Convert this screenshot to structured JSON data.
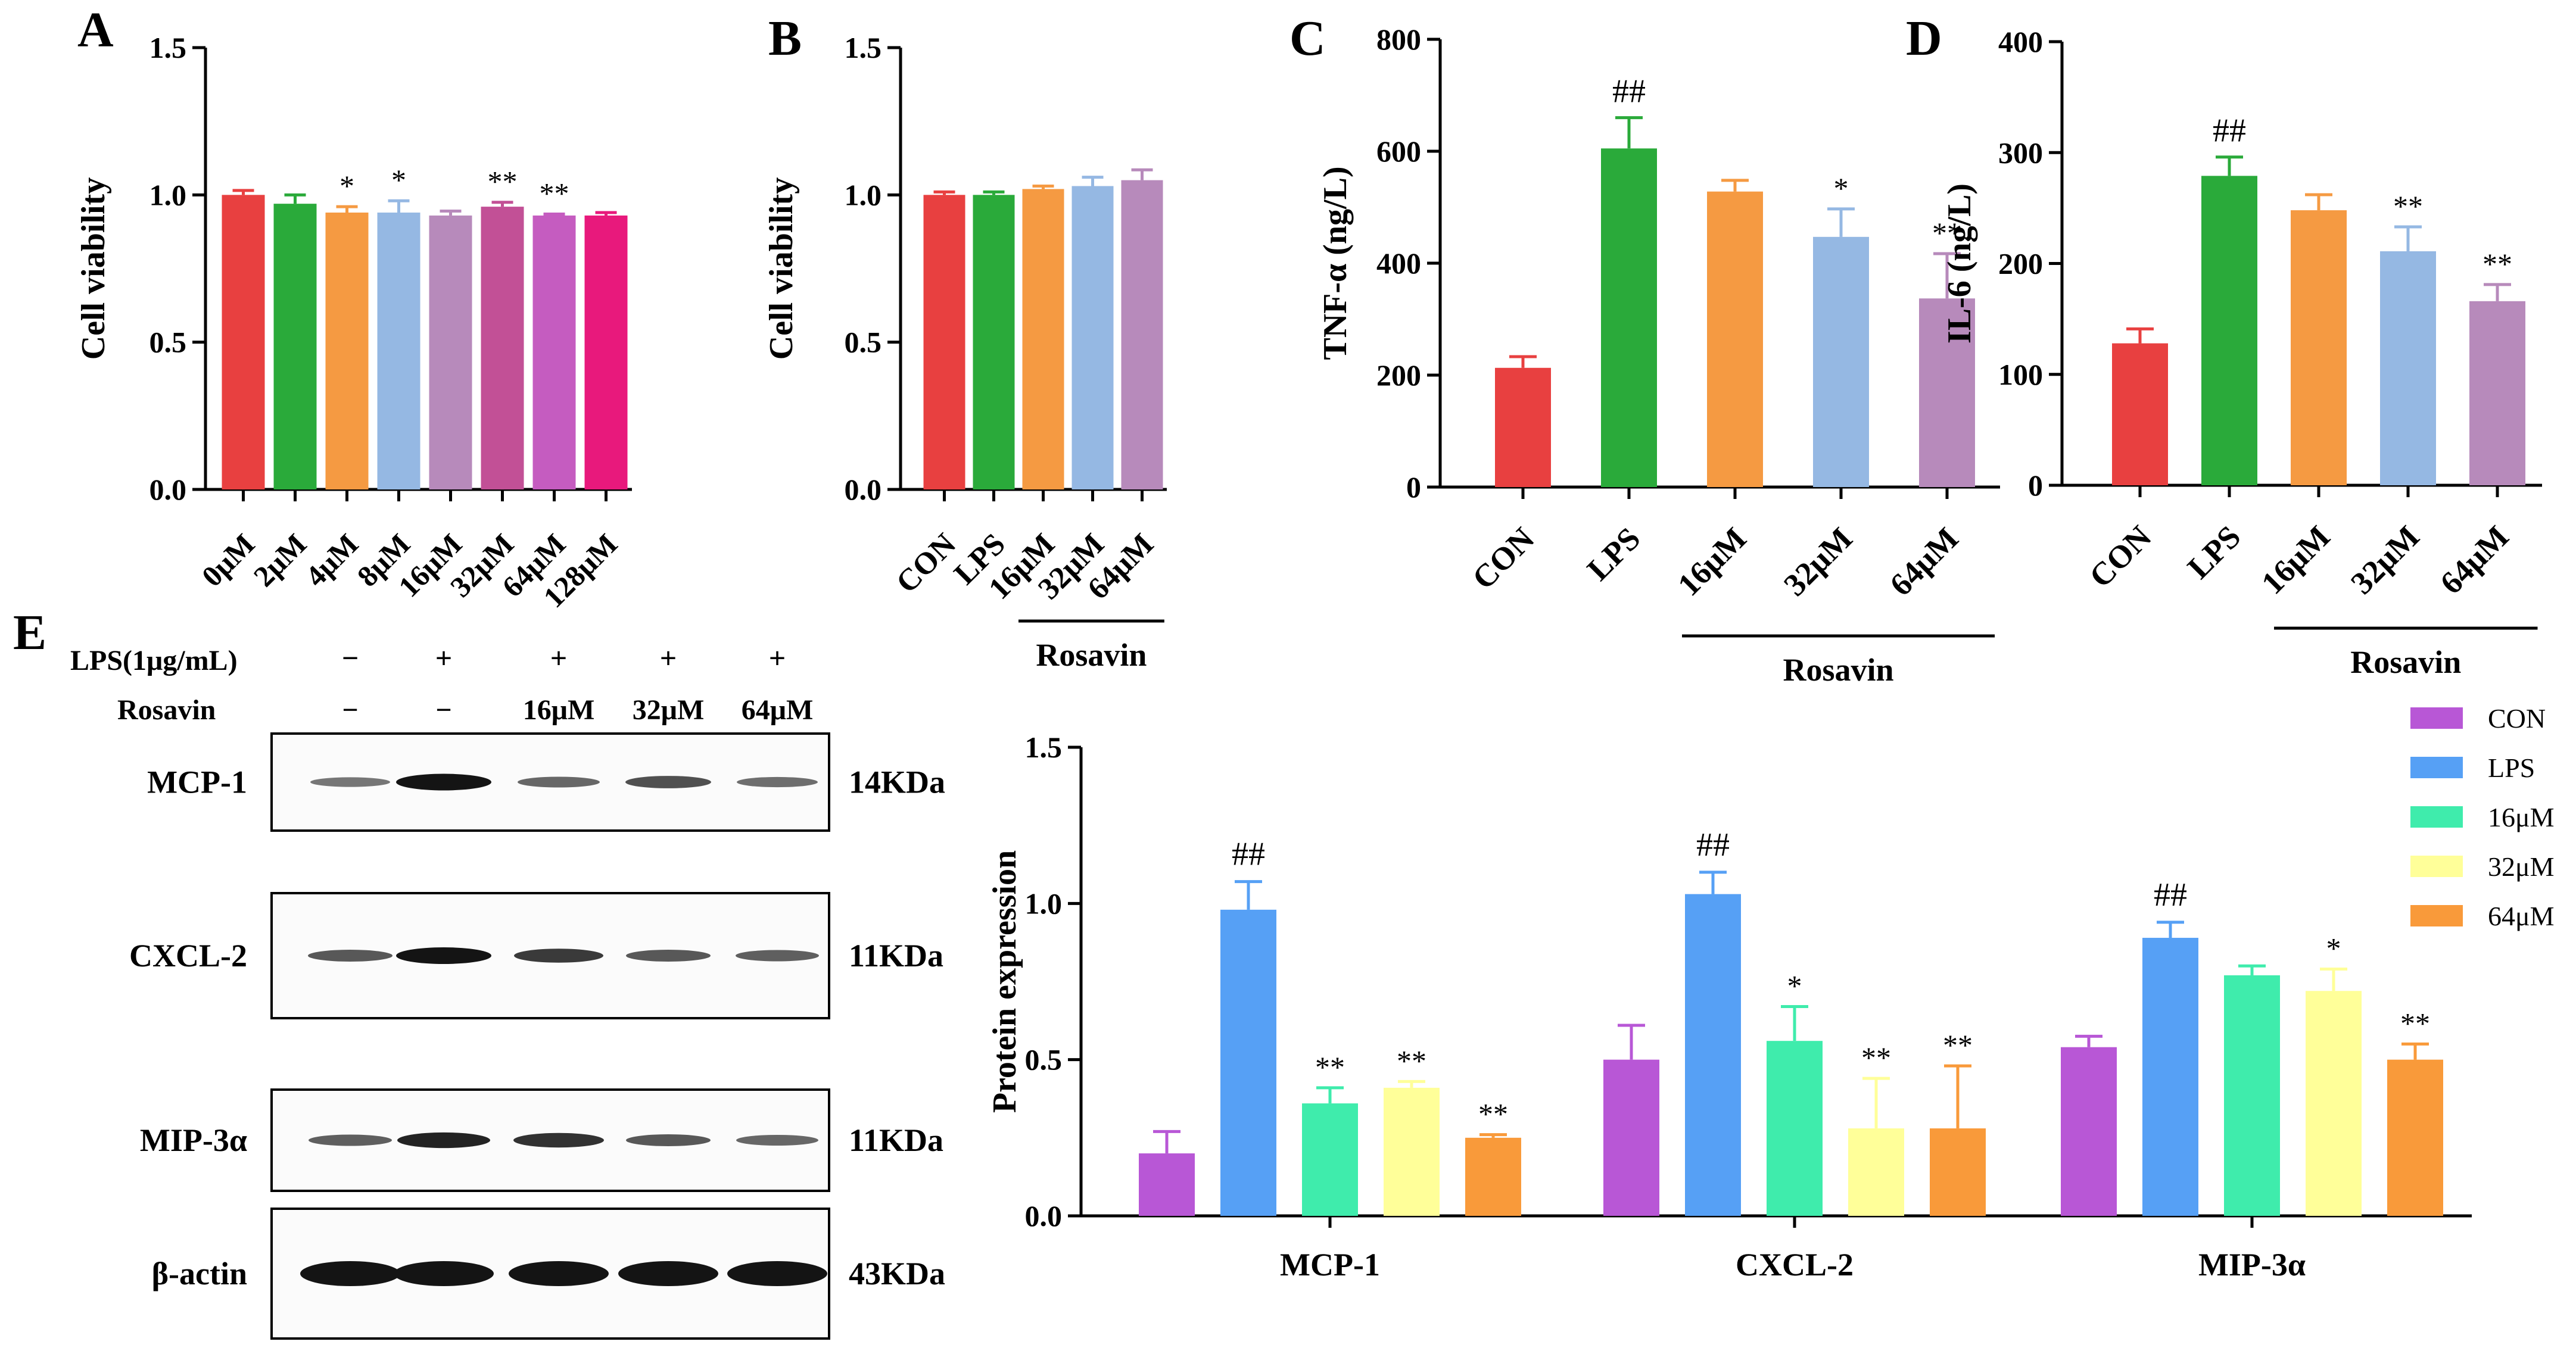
{
  "colors": {
    "red": "#e84040",
    "green": "#2aaa3a",
    "orange": "#f59a42",
    "lightblue": "#95b8e3",
    "mauve": "#b78abb",
    "pinkpurple": "#c25096",
    "magenta": "#c55cc0",
    "pink": "#e8197c",
    "purple": "#b857d6",
    "blue": "#56a0f5",
    "mint": "#3fecac",
    "yellow": "#ffff99",
    "orange2": "#f99a3a"
  },
  "chart_data": [
    {
      "panel": "A",
      "type": "bar",
      "ylabel": "Cell viability",
      "ylim": [
        0,
        1.5
      ],
      "yticks": [
        "0.0",
        "0.5",
        "1.0",
        "1.5"
      ],
      "categories": [
        "0μM",
        "2μM",
        "4μM",
        "8μM",
        "16μM",
        "32μM",
        "64μM",
        "128μM"
      ],
      "values": [
        1.0,
        0.97,
        0.94,
        0.94,
        0.93,
        0.96,
        0.93,
        0.93
      ],
      "errors": [
        0.015,
        0.03,
        0.02,
        0.04,
        0.015,
        0.015,
        0.005,
        0.01
      ],
      "annotations": [
        "",
        "",
        "*",
        "*",
        "",
        "**",
        "**",
        ""
      ],
      "colors": [
        "red",
        "green",
        "orange",
        "lightblue",
        "mauve",
        "pinkpurple",
        "magenta",
        "pink"
      ]
    },
    {
      "panel": "B",
      "type": "bar",
      "ylabel": "Cell viability",
      "ylim": [
        0,
        1.5
      ],
      "yticks": [
        "0.0",
        "0.5",
        "1.0",
        "1.5"
      ],
      "categories": [
        "CON",
        "LPS",
        "16μM",
        "32μM",
        "64μM"
      ],
      "values": [
        1.0,
        1.0,
        1.02,
        1.03,
        1.05
      ],
      "errors": [
        0.01,
        0.01,
        0.01,
        0.03,
        0.035
      ],
      "annotations": [
        "",
        "",
        "",
        "",
        ""
      ],
      "colors": [
        "red",
        "green",
        "orange",
        "lightblue",
        "mauve"
      ],
      "group_label": "Rosavin"
    },
    {
      "panel": "C",
      "type": "bar",
      "ylabel": "TNF-α (ng/L)",
      "ylim": [
        0,
        800
      ],
      "yticks": [
        "0",
        "200",
        "400",
        "600",
        "800"
      ],
      "categories": [
        "CON",
        "LPS",
        "16μM",
        "32μM",
        "64μM"
      ],
      "values": [
        213,
        605,
        528,
        447,
        337
      ],
      "errors": [
        20,
        55,
        20,
        50,
        80
      ],
      "annotations": [
        "",
        "##",
        "",
        "*",
        "**"
      ],
      "colors": [
        "red",
        "green",
        "orange",
        "lightblue",
        "mauve"
      ],
      "group_label": "Rosavin"
    },
    {
      "panel": "D",
      "type": "bar",
      "ylabel": "IL-6 (ng/L)",
      "ylim": [
        0,
        400
      ],
      "yticks": [
        "0",
        "100",
        "200",
        "300",
        "400"
      ],
      "categories": [
        "CON",
        "LPS",
        "16μM",
        "32μM",
        "64μM"
      ],
      "values": [
        128,
        279,
        248,
        211,
        166
      ],
      "errors": [
        13,
        17,
        14,
        22,
        15
      ],
      "annotations": [
        "",
        "##",
        "",
        "**",
        "**"
      ],
      "colors": [
        "red",
        "green",
        "orange",
        "lightblue",
        "mauve"
      ],
      "group_label": "Rosavin"
    },
    {
      "panel": "E",
      "type": "bar",
      "ylabel": "Protein expression",
      "ylim": [
        0,
        1.5
      ],
      "yticks": [
        "0.0",
        "0.5",
        "1.0",
        "1.5"
      ],
      "categories": [
        "MCP-1",
        "CXCL-2",
        "MIP-3α"
      ],
      "series": [
        {
          "name": "CON",
          "color": "purple",
          "values": [
            0.2,
            0.5,
            0.54
          ],
          "errors": [
            0.07,
            0.11,
            0.035
          ],
          "annotations": [
            "",
            "",
            ""
          ]
        },
        {
          "name": "LPS",
          "color": "blue",
          "values": [
            0.98,
            1.03,
            0.89
          ],
          "errors": [
            0.09,
            0.07,
            0.05
          ],
          "annotations": [
            "##",
            "##",
            "##"
          ]
        },
        {
          "name": "16μM",
          "color": "mint",
          "values": [
            0.36,
            0.56,
            0.77
          ],
          "errors": [
            0.05,
            0.11,
            0.03
          ],
          "annotations": [
            "**",
            "*",
            ""
          ]
        },
        {
          "name": "32μM",
          "color": "yellow",
          "values": [
            0.41,
            0.28,
            0.72
          ],
          "errors": [
            0.02,
            0.16,
            0.07
          ],
          "annotations": [
            "**",
            "**",
            "*"
          ]
        },
        {
          "name": "64μM",
          "color": "orange2",
          "values": [
            0.25,
            0.28,
            0.5
          ],
          "errors": [
            0.01,
            0.2,
            0.05
          ],
          "annotations": [
            "**",
            "**",
            "**"
          ]
        }
      ],
      "legend_position": "top-right"
    }
  ],
  "panel_labels": {
    "A": "A",
    "B": "B",
    "C": "C",
    "D": "D",
    "E": "E"
  },
  "blot": {
    "lps_label": "LPS(1μg/mL)",
    "rosavin_label": "Rosavin",
    "lps_row": [
      "−",
      "+",
      "+",
      "+",
      "+"
    ],
    "rosavin_row": [
      "−",
      "−",
      "16μM",
      "32μM",
      "64μM"
    ],
    "proteins": [
      {
        "name": "MCP-1",
        "size": "14KDa",
        "band_intensity": [
          0.35,
          1.0,
          0.45,
          0.6,
          0.4
        ]
      },
      {
        "name": "CXCL-2",
        "size": "11KDa",
        "band_intensity": [
          0.55,
          1.0,
          0.75,
          0.55,
          0.5
        ]
      },
      {
        "name": "MIP-3α",
        "size": "11KDa",
        "band_intensity": [
          0.5,
          0.9,
          0.8,
          0.55,
          0.45
        ]
      },
      {
        "name": "β-actin",
        "size": "43KDa",
        "band_intensity": [
          1.0,
          1.0,
          1.0,
          1.0,
          1.0
        ]
      }
    ]
  }
}
